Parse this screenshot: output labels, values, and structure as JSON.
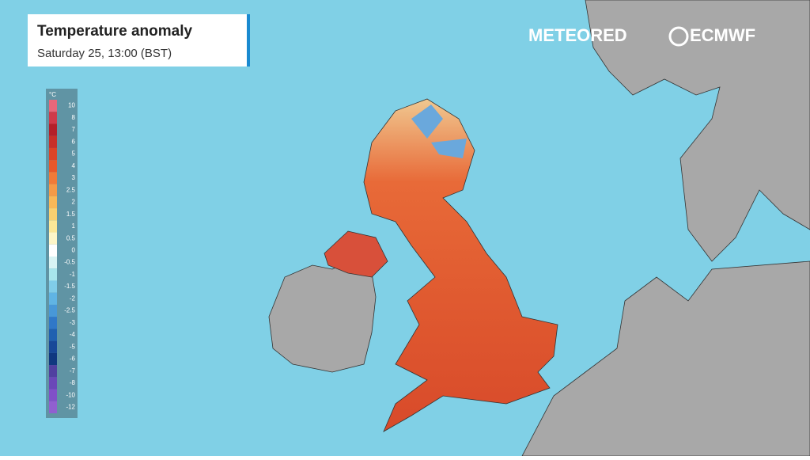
{
  "header": {
    "title": "Temperature anomaly",
    "subtitle": "Saturday 25, 13:00 (BST)"
  },
  "logos": {
    "meteored": "METEORED",
    "ecmwf": "ECMWF"
  },
  "legend": {
    "unit": "°C",
    "items": [
      {
        "label": "10",
        "color": "#e8677a"
      },
      {
        "label": "8",
        "color": "#d03a4a"
      },
      {
        "label": "7",
        "color": "#b4202a"
      },
      {
        "label": "6",
        "color": "#c8302a"
      },
      {
        "label": "5",
        "color": "#dc4428"
      },
      {
        "label": "4",
        "color": "#e8582a"
      },
      {
        "label": "3",
        "color": "#f07a38"
      },
      {
        "label": "2.5",
        "color": "#f49a48"
      },
      {
        "label": "2",
        "color": "#f8b858"
      },
      {
        "label": "1.5",
        "color": "#fad070"
      },
      {
        "label": "1",
        "color": "#fce898"
      },
      {
        "label": "0.5",
        "color": "#fef6c8"
      },
      {
        "label": "0",
        "color": "#ffffff"
      },
      {
        "label": "-0.5",
        "color": "#d8f4f4"
      },
      {
        "label": "-1",
        "color": "#a8e6ec"
      },
      {
        "label": "-1.5",
        "color": "#80cce8"
      },
      {
        "label": "-2",
        "color": "#60b4e4"
      },
      {
        "label": "-2.5",
        "color": "#4898d8"
      },
      {
        "label": "-3",
        "color": "#3078c8"
      },
      {
        "label": "-4",
        "color": "#2060b0"
      },
      {
        "label": "-5",
        "color": "#184898"
      },
      {
        "label": "-6",
        "color": "#103880"
      },
      {
        "label": "-7",
        "color": "#5040a0"
      },
      {
        "label": "-8",
        "color": "#6a48b8"
      },
      {
        "label": "-10",
        "color": "#8050c8"
      },
      {
        "label": "-12",
        "color": "#9060d0"
      }
    ]
  }
}
